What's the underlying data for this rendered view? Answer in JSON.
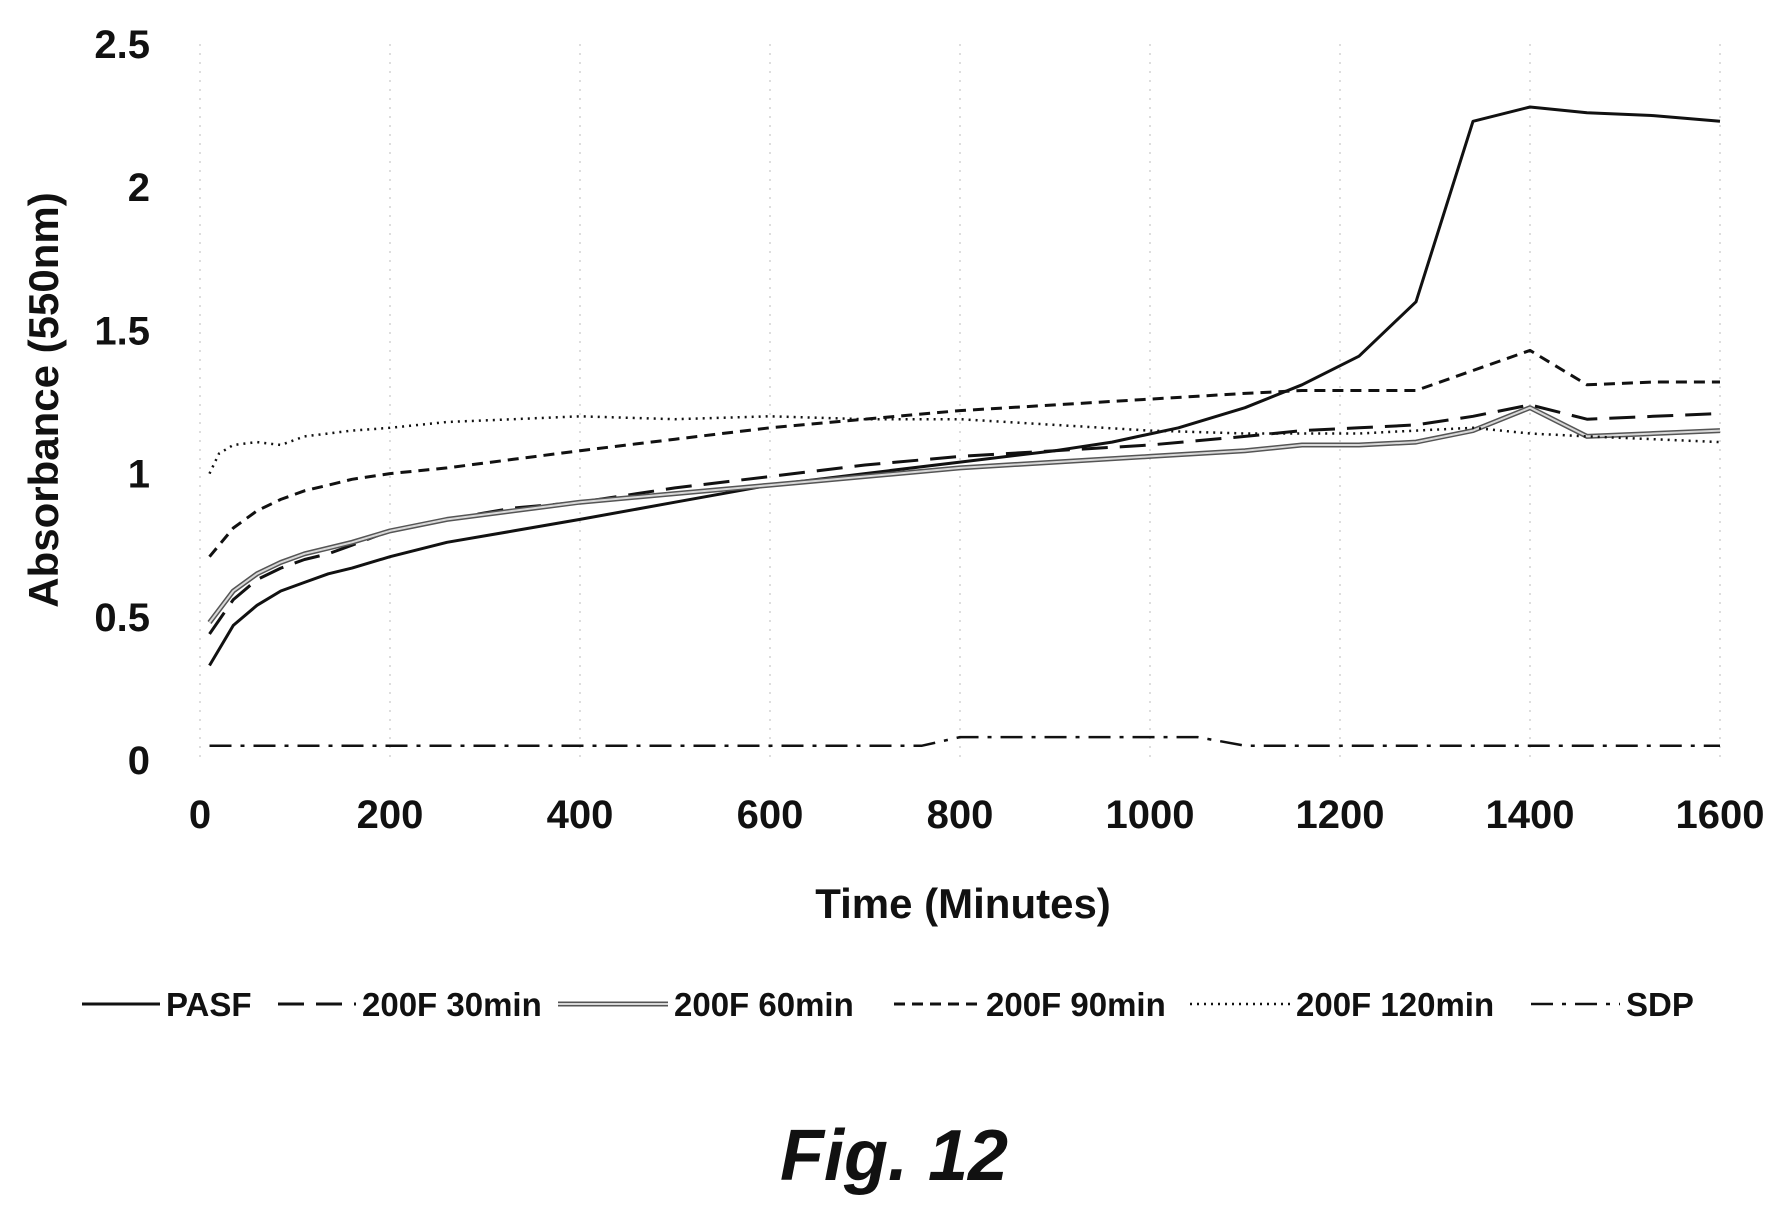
{
  "figure": {
    "caption": "Fig. 12"
  },
  "chart_data": {
    "type": "line",
    "xlabel": "Time (Minutes)",
    "ylabel": "Absorbance (550nm)",
    "xlim": [
      0,
      1600
    ],
    "ylim": [
      0,
      2.5
    ],
    "x_ticks": [
      "0",
      "200",
      "400",
      "600",
      "800",
      "1000",
      "1200",
      "1400",
      "1600"
    ],
    "y_ticks": [
      "0",
      "0.5",
      "1",
      "1.5",
      "2",
      "2.5"
    ],
    "grid": "vertical dotted",
    "legend_position": "bottom",
    "series": [
      {
        "name": "PASF",
        "style": "solid",
        "color": "#111111",
        "x": [
          10,
          35,
          60,
          85,
          110,
          135,
          160,
          200,
          260,
          330,
          400,
          500,
          600,
          700,
          800,
          900,
          960,
          1030,
          1100,
          1160,
          1220,
          1280,
          1340,
          1400,
          1460,
          1530,
          1600
        ],
        "y": [
          0.33,
          0.47,
          0.54,
          0.59,
          0.62,
          0.65,
          0.67,
          0.71,
          0.76,
          0.8,
          0.84,
          0.9,
          0.96,
          1.0,
          1.04,
          1.08,
          1.11,
          1.16,
          1.23,
          1.31,
          1.41,
          1.6,
          2.23,
          2.28,
          2.26,
          2.25,
          2.23
        ]
      },
      {
        "name": "200F 30min",
        "style": "longdash",
        "color": "#111111",
        "x": [
          10,
          35,
          60,
          85,
          110,
          135,
          160,
          200,
          260,
          330,
          400,
          500,
          600,
          700,
          800,
          900,
          1000,
          1100,
          1160,
          1220,
          1280,
          1340,
          1400,
          1460,
          1530,
          1600
        ],
        "y": [
          0.44,
          0.56,
          0.63,
          0.67,
          0.7,
          0.72,
          0.75,
          0.8,
          0.84,
          0.88,
          0.9,
          0.95,
          0.99,
          1.03,
          1.06,
          1.08,
          1.1,
          1.13,
          1.15,
          1.16,
          1.17,
          1.2,
          1.24,
          1.19,
          1.2,
          1.21
        ]
      },
      {
        "name": "200F 60min",
        "style": "double",
        "color": "#888888",
        "x": [
          10,
          35,
          60,
          85,
          110,
          135,
          160,
          200,
          260,
          330,
          400,
          500,
          600,
          700,
          800,
          900,
          1000,
          1100,
          1160,
          1220,
          1280,
          1340,
          1400,
          1460,
          1530,
          1600
        ],
        "y": [
          0.48,
          0.59,
          0.65,
          0.69,
          0.72,
          0.74,
          0.76,
          0.8,
          0.84,
          0.87,
          0.9,
          0.93,
          0.96,
          0.99,
          1.02,
          1.04,
          1.06,
          1.08,
          1.1,
          1.1,
          1.11,
          1.15,
          1.23,
          1.13,
          1.14,
          1.15
        ]
      },
      {
        "name": "200F 90min",
        "style": "shortdash",
        "color": "#111111",
        "x": [
          10,
          35,
          60,
          85,
          110,
          135,
          160,
          200,
          260,
          330,
          400,
          500,
          600,
          700,
          800,
          900,
          1000,
          1100,
          1160,
          1220,
          1280,
          1340,
          1400,
          1460,
          1530,
          1600
        ],
        "y": [
          0.71,
          0.81,
          0.87,
          0.91,
          0.94,
          0.96,
          0.98,
          1.0,
          1.02,
          1.05,
          1.08,
          1.12,
          1.16,
          1.19,
          1.22,
          1.24,
          1.26,
          1.28,
          1.29,
          1.29,
          1.29,
          1.36,
          1.43,
          1.31,
          1.32,
          1.32
        ]
      },
      {
        "name": "200F 120min",
        "style": "dotted",
        "color": "#111111",
        "x": [
          10,
          20,
          35,
          60,
          85,
          110,
          135,
          160,
          200,
          260,
          330,
          400,
          500,
          600,
          700,
          800,
          900,
          1000,
          1100,
          1160,
          1220,
          1280,
          1340,
          1400,
          1460,
          1530,
          1600
        ],
        "y": [
          1.0,
          1.07,
          1.1,
          1.11,
          1.1,
          1.13,
          1.14,
          1.15,
          1.16,
          1.18,
          1.19,
          1.2,
          1.19,
          1.2,
          1.19,
          1.19,
          1.17,
          1.15,
          1.14,
          1.14,
          1.14,
          1.15,
          1.16,
          1.14,
          1.13,
          1.12,
          1.11
        ]
      },
      {
        "name": "SDP",
        "style": "dashdot",
        "color": "#111111",
        "x": [
          10,
          100,
          200,
          300,
          400,
          500,
          600,
          700,
          760,
          800,
          900,
          1000,
          1050,
          1100,
          1200,
          1300,
          1400,
          1500,
          1600
        ],
        "y": [
          0.05,
          0.05,
          0.05,
          0.05,
          0.05,
          0.05,
          0.05,
          0.05,
          0.05,
          0.08,
          0.08,
          0.08,
          0.08,
          0.05,
          0.05,
          0.05,
          0.05,
          0.05,
          0.05
        ]
      }
    ]
  }
}
